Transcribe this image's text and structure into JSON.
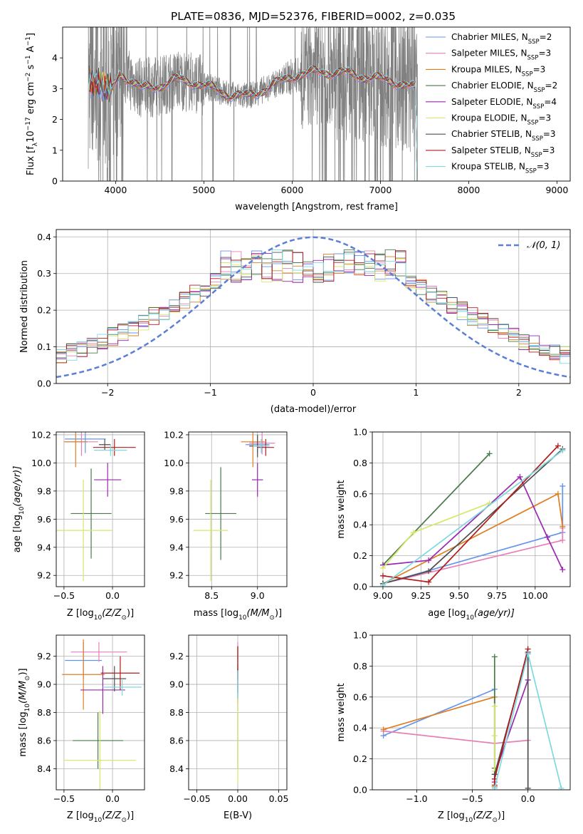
{
  "figure": {
    "title": "PLATE=0836, MJD=52376, FIBERID=0002, z=0.035"
  },
  "series_colors": [
    "#6495ed",
    "#e87fb7",
    "#dd7f22",
    "#4a7a4a",
    "#9b27b0",
    "#d4e86a",
    "#4f4f4f",
    "#b31b1b",
    "#7dd9e0"
  ],
  "chart_data": [
    {
      "id": "spectrum",
      "type": "line",
      "title": "PLATE=0836, MJD=52376, FIBERID=0002, z=0.035",
      "xlabel": "wavelength [Angstrom, rest frame]",
      "ylabel": "Flux [f",
      "ylabel_parts": [
        "Flux [f",
        "λ",
        "10",
        "−17",
        " erg cm",
        "−2",
        " s",
        "−1",
        " A",
        "−1",
        "]"
      ],
      "xlim": [
        3400,
        9150
      ],
      "ylim": [
        0,
        5
      ],
      "xticks": [
        4000,
        5000,
        6000,
        7000,
        8000,
        9000
      ],
      "yticks": [
        0,
        1,
        2,
        3,
        4
      ],
      "data_color": "#808080",
      "data_range": [
        3690,
        7420
      ],
      "legend": [
        {
          "main": "Chabrier MILES, N",
          "sub": "SSP",
          "tail": "=2"
        },
        {
          "main": "Salpeter MILES, N",
          "sub": "SSP",
          "tail": "=3"
        },
        {
          "main": "Kroupa MILES, N",
          "sub": "SSP",
          "tail": "=3"
        },
        {
          "main": "Chabrier ELODIE, N",
          "sub": "SSP",
          "tail": "=2"
        },
        {
          "main": "Salpeter ELODIE, N",
          "sub": "SSP",
          "tail": "=4"
        },
        {
          "main": "Kroupa ELODIE, N",
          "sub": "SSP",
          "tail": "=3"
        },
        {
          "main": "Chabrier STELIB, N",
          "sub": "SSP",
          "tail": "=3"
        },
        {
          "main": "Salpeter STELIB, N",
          "sub": "SSP",
          "tail": "=3"
        },
        {
          "main": "Kroupa STELIB, N",
          "sub": "SSP",
          "tail": "=3"
        }
      ],
      "model_trend": [
        [
          3700,
          3.4
        ],
        [
          3800,
          3.2
        ],
        [
          3950,
          2.9
        ],
        [
          4050,
          3.5
        ],
        [
          4150,
          3.3
        ],
        [
          4300,
          3.0
        ],
        [
          4500,
          3.1
        ],
        [
          4700,
          3.3
        ],
        [
          4900,
          3.2
        ],
        [
          5100,
          3.0
        ],
        [
          5300,
          2.8
        ],
        [
          5500,
          2.75
        ],
        [
          5700,
          3.0
        ],
        [
          6000,
          3.4
        ],
        [
          6300,
          3.55
        ],
        [
          6600,
          3.5
        ],
        [
          6900,
          3.35
        ],
        [
          7200,
          3.2
        ],
        [
          7400,
          3.0
        ]
      ]
    },
    {
      "id": "residuals",
      "type": "histogram",
      "xlabel": "(data-model)/error",
      "ylabel": "Normed distribution",
      "xlim": [
        -2.5,
        2.5
      ],
      "ylim": [
        0,
        0.42
      ],
      "xticks": [
        -2,
        -1,
        0,
        1,
        2
      ],
      "xticklabels": [
        "−2",
        "−1",
        "0",
        "1",
        "2"
      ],
      "yticks": [
        0.0,
        0.1,
        0.2,
        0.3,
        0.4
      ],
      "yticklabels": [
        "0.0",
        "0.1",
        "0.2",
        "0.3",
        "0.4"
      ],
      "bin_width": 0.1,
      "bins_from": -2.5,
      "gauss_label": "𝒩(0, 1)",
      "gauss_color": "#5b7fd6",
      "grid": true
    },
    {
      "id": "z-age",
      "type": "scatter",
      "xlabel": "Z [log",
      "xlabel_parts": [
        "Z [log",
        "10",
        "(Z/Z",
        "⊙",
        ")]"
      ],
      "ylabel_parts": [
        "age  [log",
        "10",
        "(age/yr)]"
      ],
      "xlim": [
        -0.58,
        0.33
      ],
      "ylim": [
        9.12,
        10.22
      ],
      "xticks": [
        -0.5,
        0.0
      ],
      "xticklabels": [
        "−0.5",
        "0.0"
      ],
      "yticks": [
        9.2,
        9.4,
        9.6,
        9.8,
        10.0,
        10.2
      ],
      "yticklabels": [
        "9.2",
        "9.4",
        "9.6",
        "9.8",
        "10.0",
        "10.2"
      ],
      "points": [
        {
          "x": -0.28,
          "xerr": 0.21,
          "y": 10.17,
          "yerr": 0.1
        },
        {
          "x": -0.32,
          "xerr": 0.17,
          "y": 10.15,
          "yerr": 0.1
        },
        {
          "x": -0.38,
          "xerr": 0.12,
          "y": 10.15,
          "yerr": 0.18
        },
        {
          "x": -0.22,
          "xerr": 0.21,
          "y": 9.64,
          "yerr": 0.32
        },
        {
          "x": -0.05,
          "xerr": 0.14,
          "y": 9.88,
          "yerr": 0.12
        },
        {
          "x": -0.3,
          "xerr": 0.3,
          "y": 9.52,
          "yerr": 0.36
        },
        {
          "x": -0.08,
          "xerr": 0.06,
          "y": 10.13,
          "yerr": 0.04
        },
        {
          "x": 0.02,
          "xerr": 0.22,
          "y": 10.11,
          "yerr": 0.06
        },
        {
          "x": -0.02,
          "xerr": 0.17,
          "y": 10.09,
          "yerr": 0.04
        }
      ]
    },
    {
      "id": "mass-age",
      "type": "scatter",
      "xlabel_parts": [
        "mass [log",
        "10",
        "(M/M",
        "⊙",
        ")]"
      ],
      "xlim": [
        8.25,
        9.32
      ],
      "ylim": [
        9.12,
        10.22
      ],
      "xticks": [
        8.5,
        9.0
      ],
      "xticklabels": [
        "8.5",
        "9.0"
      ],
      "yticks": [
        9.2,
        9.4,
        9.6,
        9.8,
        10.0,
        10.2
      ],
      "yticklabels": [
        "9.2",
        "9.4",
        "9.6",
        "9.8",
        "10.0",
        "10.2"
      ],
      "points": [
        {
          "x": 9.0,
          "xerr": 0.13,
          "y": 10.13,
          "yerr": 0.06
        },
        {
          "x": 9.05,
          "xerr": 0.14,
          "y": 10.14,
          "yerr": 0.08
        },
        {
          "x": 8.95,
          "xerr": 0.13,
          "y": 10.15,
          "yerr": 0.18
        },
        {
          "x": 8.6,
          "xerr": 0.17,
          "y": 9.64,
          "yerr": 0.33
        },
        {
          "x": 9.0,
          "xerr": 0.06,
          "y": 9.88,
          "yerr": 0.12
        },
        {
          "x": 8.49,
          "xerr": 0.19,
          "y": 9.52,
          "yerr": 0.36
        },
        {
          "x": 9.0,
          "xerr": 0.09,
          "y": 10.12,
          "yerr": 0.08
        },
        {
          "x": 9.09,
          "xerr": 0.09,
          "y": 10.11,
          "yerr": 0.06
        },
        {
          "x": 9.04,
          "xerr": 0.09,
          "y": 10.12,
          "yerr": 0.05
        }
      ]
    },
    {
      "id": "age-weight",
      "type": "line",
      "xlabel_parts": [
        "age  [log",
        "10",
        "(age/yr)]"
      ],
      "ylabel": "mass weight",
      "xlim": [
        8.93,
        10.23
      ],
      "ylim": [
        0,
        1
      ],
      "xticks": [
        9.0,
        9.25,
        9.5,
        9.75,
        10.0
      ],
      "xticklabels": [
        "9.00",
        "9.25",
        "9.50",
        "9.75",
        "10.00"
      ],
      "yticks": [
        0.0,
        0.2,
        0.4,
        0.6,
        0.8,
        1.0
      ],
      "yticklabels": [
        "0.0",
        "0.2",
        "0.4",
        "0.6",
        "0.8",
        "1.0"
      ],
      "series": [
        {
          "values": [
            [
              9.0,
              0.02
            ],
            [
              10.18,
              0.35
            ],
            [
              10.18,
              0.65
            ]
          ]
        },
        {
          "values": [
            [
              9.0,
              0.02
            ],
            [
              10.18,
              0.3
            ],
            [
              10.18,
              0.38
            ]
          ]
        },
        {
          "values": [
            [
              9.0,
              0.02
            ],
            [
              10.15,
              0.6
            ],
            [
              10.18,
              0.39
            ]
          ]
        },
        {
          "values": [
            [
              9.0,
              0.14
            ],
            [
              9.7,
              0.86
            ]
          ]
        },
        {
          "values": [
            [
              9.0,
              0.14
            ],
            [
              9.3,
              0.17
            ],
            [
              9.9,
              0.71
            ],
            [
              10.08,
              0.32
            ],
            [
              10.18,
              0.11
            ]
          ]
        },
        {
          "values": [
            [
              9.0,
              0.12
            ],
            [
              9.2,
              0.35
            ],
            [
              9.7,
              0.54
            ]
          ]
        },
        {
          "values": [
            [
              9.0,
              0.02
            ],
            [
              9.3,
              0.1
            ],
            [
              10.18,
              0.89
            ]
          ]
        },
        {
          "values": [
            [
              9.0,
              0.07
            ],
            [
              9.3,
              0.03
            ],
            [
              10.15,
              0.91
            ]
          ]
        },
        {
          "values": [
            [
              9.0,
              0.01
            ],
            [
              10.18,
              0.88
            ]
          ]
        }
      ]
    },
    {
      "id": "z-mass",
      "type": "scatter",
      "xlabel_parts": [
        "Z [log",
        "10",
        "(Z/Z",
        "⊙",
        ")]"
      ],
      "ylabel_parts": [
        "mass [log",
        "10",
        "(M/M",
        "⊙",
        ")]"
      ],
      "xlim": [
        -0.58,
        0.33
      ],
      "ylim": [
        8.25,
        9.35
      ],
      "xticks": [
        -0.5,
        0.0
      ],
      "xticklabels": [
        "−0.5",
        "0.0"
      ],
      "yticks": [
        8.4,
        8.6,
        8.8,
        9.0,
        9.2
      ],
      "yticklabels": [
        "8.4",
        "8.6",
        "8.8",
        "9.0",
        "9.2"
      ],
      "points": [
        {
          "x": -0.3,
          "xerr": 0.19,
          "y": 9.17,
          "yerr": 0.13
        },
        {
          "x": -0.14,
          "xerr": 0.29,
          "y": 9.23,
          "yerr": 0.07
        },
        {
          "x": -0.3,
          "xerr": 0.22,
          "y": 9.07,
          "yerr": 0.25
        },
        {
          "x": -0.15,
          "xerr": 0.26,
          "y": 8.6,
          "yerr": 0.2
        },
        {
          "x": -0.1,
          "xerr": 0.23,
          "y": 8.96,
          "yerr": 0.17
        },
        {
          "x": -0.13,
          "xerr": 0.37,
          "y": 8.46,
          "yerr": 0.35
        },
        {
          "x": 0.02,
          "xerr": 0.12,
          "y": 9.04,
          "yerr": 0.09
        },
        {
          "x": 0.08,
          "xerr": 0.2,
          "y": 9.08,
          "yerr": 0.12
        },
        {
          "x": 0.1,
          "xerr": 0.2,
          "y": 8.98,
          "yerr": 0.06
        }
      ]
    },
    {
      "id": "ebv-mass",
      "type": "scatter",
      "xlabel": "E(B-V)",
      "xlim": [
        -0.06,
        0.06
      ],
      "ylim": [
        8.25,
        9.35
      ],
      "xticks": [
        -0.05,
        0.0,
        0.05
      ],
      "xticklabels": [
        "−0.05",
        "0.00",
        "0.05"
      ],
      "yticks": [
        8.4,
        8.6,
        8.8,
        9.0,
        9.2
      ],
      "yticklabels": [
        "8.4",
        "8.6",
        "8.8",
        "9.0",
        "9.2"
      ],
      "points": [
        {
          "x": 0.0,
          "xerr": 0.0,
          "y": 9.17,
          "yerr": 0.1
        },
        {
          "x": 0.0,
          "xerr": 0.0,
          "y": 9.23,
          "yerr": 0.07
        },
        {
          "x": 0.0,
          "xerr": 0.0,
          "y": 9.07,
          "yerr": 0.2
        },
        {
          "x": 0.0,
          "xerr": 0.0,
          "y": 8.6,
          "yerr": 0.2
        },
        {
          "x": 0.0,
          "xerr": 0.0,
          "y": 8.96,
          "yerr": 0.15
        },
        {
          "x": 0.0,
          "xerr": 0.0,
          "y": 8.62,
          "yerr": 0.32
        },
        {
          "x": 0.0,
          "xerr": 0.0,
          "y": 9.04,
          "yerr": 0.1
        },
        {
          "x": 0.0,
          "xerr": 0.0,
          "y": 9.15,
          "yerr": 0.12
        },
        {
          "x": 0.0,
          "xerr": 0.0,
          "y": 9.0,
          "yerr": 0.1
        }
      ]
    },
    {
      "id": "z-weight",
      "type": "line",
      "xlabel_parts": [
        "Z [log",
        "10",
        "(Z/Z",
        "⊙",
        ")]"
      ],
      "ylabel": "mass weight",
      "xlim": [
        -1.4,
        0.38
      ],
      "ylim": [
        0,
        1
      ],
      "xticks": [
        -1.0,
        -0.5,
        0.0
      ],
      "xticklabels": [
        "−1.0",
        "−0.5",
        "0.0"
      ],
      "yticks": [
        0.0,
        0.2,
        0.4,
        0.6,
        0.8,
        1.0
      ],
      "yticklabels": [
        "0.0",
        "0.2",
        "0.4",
        "0.6",
        "0.8",
        "1.0"
      ],
      "series": [
        {
          "values": [
            [
              -1.3,
              0.35
            ],
            [
              -0.3,
              0.65
            ],
            [
              -0.3,
              0.02
            ]
          ]
        },
        {
          "values": [
            [
              -1.3,
              0.38
            ],
            [
              -0.3,
              0.3
            ],
            [
              0.0,
              0.32
            ]
          ]
        },
        {
          "values": [
            [
              -1.3,
              0.39
            ],
            [
              -0.3,
              0.6
            ],
            [
              -0.3,
              0.02
            ]
          ]
        },
        {
          "values": [
            [
              -0.3,
              0.86
            ],
            [
              -0.3,
              0.14
            ]
          ]
        },
        {
          "values": [
            [
              -0.3,
              0.05
            ],
            [
              -0.3,
              0.1
            ],
            [
              0.0,
              0.71
            ],
            [
              0.0,
              0.88
            ]
          ]
        },
        {
          "values": [
            [
              -0.3,
              0.54
            ],
            [
              -0.3,
              0.35
            ],
            [
              -0.3,
              0.12
            ]
          ]
        },
        {
          "values": [
            [
              -0.3,
              0.1
            ],
            [
              0.0,
              0.89
            ],
            [
              0.0,
              0.01
            ]
          ]
        },
        {
          "values": [
            [
              -0.3,
              0.03
            ],
            [
              -0.3,
              0.07
            ],
            [
              0.0,
              0.91
            ]
          ]
        },
        {
          "values": [
            [
              -0.3,
              0.01
            ],
            [
              0.0,
              0.88
            ],
            [
              0.3,
              0.01
            ]
          ]
        }
      ]
    }
  ]
}
